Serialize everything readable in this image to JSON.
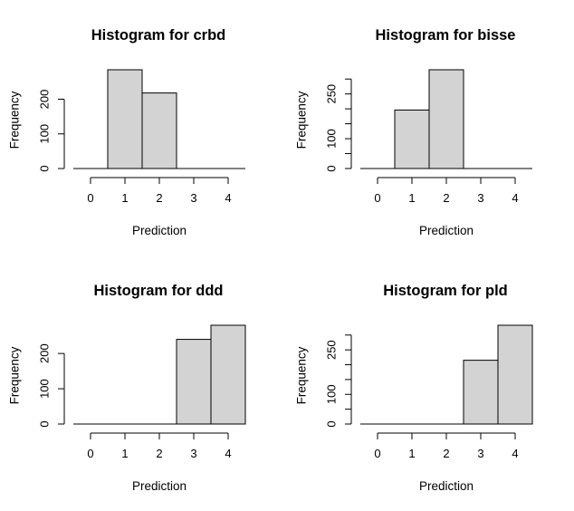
{
  "figure": {
    "bar_fill": "#d3d3d3",
    "background": "#ffffff"
  },
  "chart_data": [
    {
      "type": "bar",
      "title": "Histogram for crbd",
      "xlabel": "Prediction",
      "ylabel": "Frequency",
      "x_ticks": [
        0,
        1,
        2,
        3,
        4
      ],
      "y_ticks": [
        0,
        100,
        200
      ],
      "bin_edges": [
        -0.5,
        0.5,
        1.5,
        2.5,
        3.5,
        4.5
      ],
      "values": [
        0,
        285,
        218,
        0,
        0
      ],
      "xlim": [
        -0.5,
        4.5
      ],
      "ylim": [
        0,
        285
      ]
    },
    {
      "type": "bar",
      "title": "Histogram for bisse",
      "xlabel": "Prediction",
      "ylabel": "Frequency",
      "x_ticks": [
        0,
        1,
        2,
        3,
        4
      ],
      "y_ticks": [
        0,
        100,
        250
      ],
      "y_minor_ticks": [
        50,
        150,
        200,
        300
      ],
      "bin_edges": [
        -0.5,
        0.5,
        1.5,
        2.5,
        3.5,
        4.5
      ],
      "values": [
        0,
        196,
        331,
        0,
        0
      ],
      "xlim": [
        -0.5,
        4.5
      ],
      "ylim": [
        0,
        331
      ]
    },
    {
      "type": "bar",
      "title": "Histogram for ddd",
      "xlabel": "Prediction",
      "ylabel": "Frequency",
      "x_ticks": [
        0,
        1,
        2,
        3,
        4
      ],
      "y_ticks": [
        0,
        100,
        200
      ],
      "bin_edges": [
        -0.5,
        0.5,
        1.5,
        2.5,
        3.5,
        4.5
      ],
      "values": [
        0,
        0,
        0,
        240,
        280
      ],
      "xlim": [
        -0.5,
        4.5
      ],
      "ylim": [
        0,
        280
      ]
    },
    {
      "type": "bar",
      "title": "Histogram for pld",
      "xlabel": "Prediction",
      "ylabel": "Frequency",
      "x_ticks": [
        0,
        1,
        2,
        3,
        4
      ],
      "y_ticks": [
        0,
        100,
        250
      ],
      "y_minor_ticks": [
        50,
        150,
        200,
        300
      ],
      "bin_edges": [
        -0.5,
        0.5,
        1.5,
        2.5,
        3.5,
        4.5
      ],
      "values": [
        0,
        0,
        0,
        215,
        333
      ],
      "xlim": [
        -0.5,
        4.5
      ],
      "ylim": [
        0,
        333
      ]
    }
  ]
}
